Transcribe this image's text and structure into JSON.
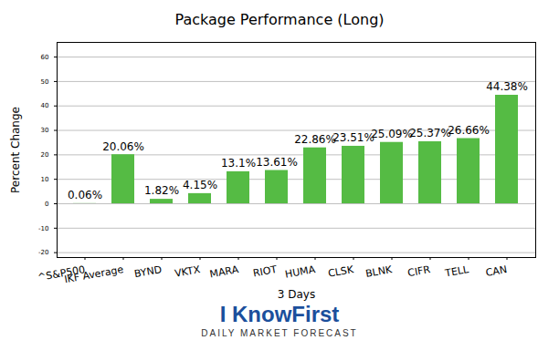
{
  "chart_data": {
    "type": "bar",
    "title": "Package Performance (Long)",
    "x_label": "3 Days",
    "y_label": "Percent Change",
    "categories": [
      "^S&P500",
      "IKF Average",
      "BYND",
      "VKTX",
      "MARA",
      "RIOT",
      "HUMA",
      "CLSK",
      "BLNK",
      "CIFR",
      "TELL",
      "CAN"
    ],
    "values": [
      0.06,
      20.06,
      1.82,
      4.15,
      13.1,
      13.61,
      22.86,
      23.51,
      25.09,
      25.37,
      26.66,
      44.38
    ],
    "value_labels": [
      "0.06%",
      "20.06%",
      "1.82%",
      "4.15%",
      "13.1%",
      "13.61%",
      "22.86%",
      "23.51%",
      "25.09%",
      "25.37%",
      "26.66%",
      "44.38%"
    ],
    "data_labels": true,
    "color": "#55bb44",
    "ylim": [
      -22,
      66
    ],
    "yticks": [
      -20,
      -10,
      0,
      10,
      20,
      30,
      40,
      50,
      60
    ],
    "grid": true,
    "annotations": [
      "I KnowFirst",
      "DAILY MARKET FORECAST"
    ]
  }
}
